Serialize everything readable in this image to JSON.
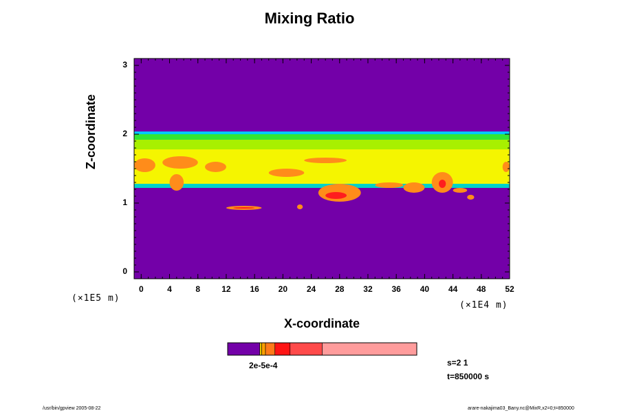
{
  "chart_data": {
    "type": "heatmap",
    "title": "Mixing Ratio",
    "xlabel": "X-coordinate",
    "ylabel": "Z-coordinate",
    "x_unit": "(×1E4 m)",
    "y_unit": "(×1E5 m)",
    "xlim": [
      -1,
      52
    ],
    "ylim": [
      -0.1,
      3.1
    ],
    "x_ticks": [
      "0",
      "4",
      "8",
      "12",
      "16",
      "20",
      "24",
      "28",
      "32",
      "36",
      "40",
      "44",
      "48",
      "52"
    ],
    "x_tick_values": [
      0,
      4,
      8,
      12,
      16,
      20,
      24,
      28,
      32,
      36,
      40,
      44,
      48,
      52
    ],
    "y_ticks": [
      "0",
      "1",
      "2",
      "3"
    ],
    "y_tick_values": [
      0,
      1,
      2,
      3
    ],
    "background_color": "#7300a8",
    "layers": [
      {
        "name": "cyan-top",
        "color": "#00c8ff",
        "z_range": [
          2.0,
          2.04
        ]
      },
      {
        "name": "green-band",
        "color": "#33e633",
        "z_range": [
          1.92,
          2.0
        ]
      },
      {
        "name": "lime-band",
        "color": "#a8f000",
        "z_range": [
          1.78,
          1.92
        ]
      },
      {
        "name": "yellow-band",
        "color": "#f5f500",
        "z_range": [
          1.28,
          1.78
        ]
      },
      {
        "name": "cyan-bottom",
        "color": "#00d2c8",
        "z_range": [
          1.22,
          1.28
        ]
      }
    ],
    "features": [
      {
        "color": "#ff8c1a",
        "x": [
          -1,
          2
        ],
        "z": [
          1.45,
          1.65
        ]
      },
      {
        "color": "#ff8c1a",
        "x": [
          3,
          8
        ],
        "z": [
          1.5,
          1.68
        ]
      },
      {
        "color": "#ff8c1a",
        "x": [
          4,
          6
        ],
        "z": [
          1.18,
          1.42
        ]
      },
      {
        "color": "#ff8c1a",
        "x": [
          9,
          12
        ],
        "z": [
          1.45,
          1.6
        ]
      },
      {
        "color": "#ff8c1a",
        "x": [
          18,
          23
        ],
        "z": [
          1.38,
          1.5
        ]
      },
      {
        "color": "#ff8c1a",
        "x": [
          23,
          29
        ],
        "z": [
          1.58,
          1.66
        ]
      },
      {
        "color": "#ff8c1a",
        "x": [
          25,
          31
        ],
        "z": [
          1.02,
          1.28
        ]
      },
      {
        "color": "#ff1e1e",
        "x": [
          26,
          29
        ],
        "z": [
          1.06,
          1.16
        ]
      },
      {
        "color": "#ff8c1a",
        "x": [
          33,
          37
        ],
        "z": [
          1.22,
          1.3
        ]
      },
      {
        "color": "#ff8c1a",
        "x": [
          37,
          40
        ],
        "z": [
          1.15,
          1.3
        ]
      },
      {
        "color": "#ff8c1a",
        "x": [
          41,
          44
        ],
        "z": [
          1.15,
          1.45
        ]
      },
      {
        "color": "#ff1e1e",
        "x": [
          42,
          43
        ],
        "z": [
          1.22,
          1.34
        ]
      },
      {
        "color": "#ff8c1a",
        "x": [
          44,
          46
        ],
        "z": [
          1.15,
          1.22
        ]
      },
      {
        "color": "#ff8c1a",
        "x": [
          51,
          52
        ],
        "z": [
          1.45,
          1.6
        ]
      },
      {
        "color": "#ff8c1a",
        "x": [
          12,
          17
        ],
        "z": [
          0.9,
          0.96
        ]
      },
      {
        "color": "#ff1e1e",
        "x": [
          13,
          16
        ],
        "z": [
          0.92,
          0.94
        ]
      },
      {
        "color": "#ff8c1a",
        "x": [
          22,
          22.8
        ],
        "z": [
          0.91,
          0.98
        ]
      },
      {
        "color": "#ff8c1a",
        "x": [
          46,
          47
        ],
        "z": [
          1.05,
          1.12
        ]
      }
    ],
    "colorbar": {
      "label": "2e-5e-4",
      "segments": [
        {
          "color": "#7300a8",
          "fraction": 0.17
        },
        {
          "color": "#f0d000",
          "fraction": 0.01
        },
        {
          "color": "#ffa000",
          "fraction": 0.02
        },
        {
          "color": "#ff7a1a",
          "fraction": 0.05
        },
        {
          "color": "#ff1414",
          "fraction": 0.08
        },
        {
          "color": "#ff4a4a",
          "fraction": 0.17
        },
        {
          "color": "#ff9c9c",
          "fraction": 0.5
        }
      ]
    },
    "annotations": {
      "s": "s=2 1",
      "t": "t=850000 s"
    }
  },
  "footer": {
    "left": "/usr/bin/gpview 2005-08-22",
    "right": "arare-nakajima03_Bany.nc@MixR,x2=0;t=850000"
  }
}
